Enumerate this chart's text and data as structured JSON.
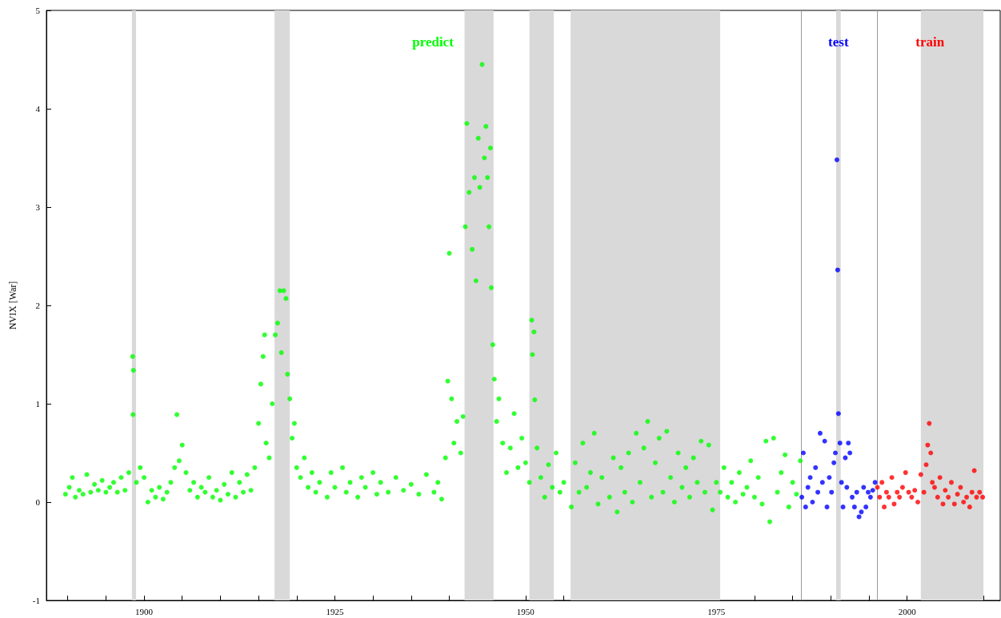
{
  "chart_data": {
    "type": "scatter",
    "ylabel": "NVIX [War]",
    "xlim": [
      1887.2,
      2012.2
    ],
    "ylim": [
      -1,
      5
    ],
    "xticks": [
      {
        "value": 1890,
        "label": null
      },
      {
        "value": 1895,
        "label": null
      },
      1900,
      {
        "value": 1905,
        "label": null
      },
      {
        "value": 1910,
        "label": null
      },
      {
        "value": 1915,
        "label": null
      },
      {
        "value": 1920,
        "label": null
      },
      1925,
      {
        "value": 1930,
        "label": null
      },
      {
        "value": 1935,
        "label": null
      },
      {
        "value": 1940,
        "label": null
      },
      {
        "value": 1945,
        "label": null
      },
      1950,
      {
        "value": 1955,
        "label": null
      },
      {
        "value": 1960,
        "label": null
      },
      {
        "value": 1965,
        "label": null
      },
      {
        "value": 1970,
        "label": null
      },
      1975,
      {
        "value": 1980,
        "label": null
      },
      {
        "value": 1985,
        "label": null
      },
      {
        "value": 1990,
        "label": null
      },
      {
        "value": 1995,
        "label": null
      },
      2000,
      {
        "value": 2005,
        "label": null
      },
      {
        "value": 2010,
        "label": null
      }
    ],
    "yticks": [
      -1,
      0,
      1,
      2,
      3,
      4,
      5
    ],
    "grid": false,
    "legend": false,
    "marker": "circle",
    "bands": [
      {
        "axis": "x",
        "from": 1898.4,
        "to": 1898.95,
        "color": "#d9d9d9"
      },
      {
        "axis": "x",
        "from": 1917.1,
        "to": 1919.1,
        "color": "#d9d9d9"
      },
      {
        "axis": "x",
        "from": 1942.0,
        "to": 1945.8,
        "color": "#d9d9d9"
      },
      {
        "axis": "x",
        "from": 1950.5,
        "to": 1953.7,
        "color": "#d9d9d9"
      },
      {
        "axis": "x",
        "from": 1955.9,
        "to": 1975.5,
        "color": "#d9d9d9"
      },
      {
        "axis": "x",
        "from": 1990.7,
        "to": 1991.3,
        "color": "#d9d9d9"
      },
      {
        "axis": "x",
        "from": 2001.8,
        "to": 2010.0,
        "color": "#d9d9d9"
      }
    ],
    "ref_lines": [
      {
        "axis": "x",
        "value": 1986.1,
        "color": "#999999",
        "line_style": "solid"
      },
      {
        "axis": "x",
        "value": 1996.1,
        "color": "#999999",
        "line_style": "solid"
      }
    ],
    "series": [
      {
        "name": "predict",
        "color": "#00ff00",
        "x": [
          1889.7,
          1890.2,
          1890.6,
          1891.0,
          1891.5,
          1892.0,
          1892.5,
          1893.0,
          1893.5,
          1894.0,
          1894.5,
          1895.0,
          1895.5,
          1896.0,
          1896.5,
          1897.0,
          1897.5,
          1898.0,
          1898.5,
          1898.6,
          1898.55,
          1899.0,
          1899.5,
          1900.0,
          1900.5,
          1901.0,
          1901.5,
          1902.0,
          1902.5,
          1903.0,
          1903.5,
          1904.0,
          1904.3,
          1904.6,
          1905.0,
          1905.5,
          1906.0,
          1906.5,
          1907.0,
          1907.5,
          1908.0,
          1908.5,
          1909.0,
          1909.5,
          1910.0,
          1910.5,
          1911.0,
          1911.5,
          1912.0,
          1912.5,
          1913.0,
          1913.5,
          1914.0,
          1914.5,
          1915.0,
          1915.3,
          1915.6,
          1915.8,
          1916.0,
          1916.4,
          1916.8,
          1917.2,
          1917.5,
          1917.8,
          1918.0,
          1918.3,
          1918.6,
          1918.8,
          1919.1,
          1919.4,
          1919.7,
          1920.0,
          1920.5,
          1921.0,
          1921.5,
          1922.0,
          1922.5,
          1923.0,
          1924.0,
          1924.5,
          1925.0,
          1926.0,
          1926.5,
          1927.0,
          1928.0,
          1928.5,
          1929.0,
          1930.0,
          1930.5,
          1931.0,
          1932.0,
          1933.0,
          1934.0,
          1935.0,
          1936.0,
          1937.0,
          1938.0,
          1938.5,
          1939.0,
          1939.5,
          1939.8,
          1940.0,
          1940.3,
          1940.6,
          1941.0,
          1941.5,
          1941.8,
          1942.1,
          1942.3,
          1942.6,
          1943.0,
          1943.3,
          1943.5,
          1943.8,
          1944.0,
          1944.3,
          1944.6,
          1944.8,
          1945.0,
          1945.2,
          1945.4,
          1945.5,
          1945.7,
          1945.9,
          1946.2,
          1946.5,
          1947.0,
          1947.5,
          1948.0,
          1948.5,
          1949.0,
          1949.5,
          1950.0,
          1950.5,
          1950.8,
          1950.9,
          1951.1,
          1951.2,
          1951.5,
          1952.0,
          1952.5,
          1953.0,
          1953.5,
          1954.0,
          1954.5,
          1955.0,
          1956.0,
          1956.5,
          1957.0,
          1957.5,
          1958.0,
          1958.5,
          1959.0,
          1959.5,
          1960.0,
          1961.0,
          1961.5,
          1962.0,
          1962.5,
          1963.0,
          1963.5,
          1964.0,
          1964.5,
          1965.0,
          1965.5,
          1966.0,
          1966.5,
          1967.0,
          1967.5,
          1968.0,
          1968.5,
          1969.0,
          1969.5,
          1970.0,
          1970.5,
          1971.0,
          1971.5,
          1972.0,
          1972.5,
          1973.0,
          1973.5,
          1974.0,
          1974.5,
          1975.0,
          1975.5,
          1976.0,
          1976.5,
          1977.0,
          1977.5,
          1978.0,
          1978.5,
          1979.0,
          1979.5,
          1980.0,
          1980.5,
          1981.0,
          1981.5,
          1982.0,
          1982.5,
          1983.0,
          1983.5,
          1984.0,
          1984.5,
          1985.0,
          1985.5,
          1986.0
        ],
        "values": [
          0.08,
          0.15,
          0.25,
          0.05,
          0.12,
          0.08,
          0.28,
          0.1,
          0.18,
          0.12,
          0.22,
          0.1,
          0.15,
          0.2,
          0.1,
          0.25,
          0.12,
          0.3,
          1.48,
          1.34,
          0.89,
          0.2,
          0.35,
          0.25,
          0.0,
          0.12,
          0.05,
          0.15,
          0.03,
          0.1,
          0.2,
          0.35,
          0.89,
          0.42,
          0.58,
          0.3,
          0.12,
          0.2,
          0.05,
          0.15,
          0.1,
          0.25,
          0.05,
          0.12,
          0.02,
          0.18,
          0.08,
          0.3,
          0.05,
          0.2,
          0.1,
          0.28,
          0.12,
          0.35,
          0.8,
          1.2,
          1.48,
          1.7,
          0.6,
          0.45,
          1.0,
          1.7,
          1.82,
          2.15,
          1.52,
          2.15,
          2.07,
          1.3,
          1.05,
          0.65,
          0.8,
          0.35,
          0.25,
          0.45,
          0.15,
          0.3,
          0.1,
          0.2,
          0.05,
          0.3,
          0.15,
          0.35,
          0.1,
          0.2,
          0.05,
          0.25,
          0.15,
          0.3,
          0.08,
          0.2,
          0.1,
          0.25,
          0.12,
          0.18,
          0.08,
          0.28,
          0.1,
          0.2,
          0.03,
          0.45,
          1.23,
          2.53,
          1.05,
          0.6,
          0.82,
          0.5,
          0.87,
          2.8,
          3.85,
          3.15,
          2.57,
          3.3,
          2.25,
          3.7,
          3.2,
          4.45,
          3.5,
          3.82,
          3.3,
          2.8,
          3.6,
          2.18,
          1.6,
          1.25,
          0.82,
          1.05,
          0.6,
          0.3,
          0.55,
          0.9,
          0.35,
          0.65,
          0.4,
          0.2,
          1.85,
          1.5,
          1.73,
          1.04,
          0.55,
          0.25,
          0.05,
          0.38,
          0.15,
          0.5,
          0.1,
          0.2,
          -0.05,
          0.4,
          0.1,
          0.6,
          0.15,
          0.3,
          0.7,
          -0.02,
          0.25,
          0.05,
          0.45,
          -0.1,
          0.35,
          0.1,
          0.5,
          0.0,
          0.7,
          0.2,
          0.55,
          0.82,
          0.05,
          0.4,
          0.65,
          0.1,
          0.72,
          0.25,
          0.0,
          0.5,
          0.15,
          0.35,
          0.05,
          0.45,
          0.2,
          0.62,
          0.1,
          0.58,
          -0.08,
          0.2,
          0.1,
          0.35,
          0.05,
          0.2,
          0.0,
          0.3,
          0.08,
          0.15,
          0.42,
          0.05,
          0.25,
          -0.02,
          0.62,
          -0.2,
          0.65,
          0.1,
          0.3,
          0.48,
          -0.05,
          0.2,
          0.08,
          0.42
        ]
      },
      {
        "name": "test",
        "color": "#0000ff",
        "x": [
          1986.2,
          1986.4,
          1986.7,
          1987.0,
          1987.3,
          1987.6,
          1988.0,
          1988.3,
          1988.6,
          1988.9,
          1989.2,
          1989.5,
          1989.8,
          1990.1,
          1990.4,
          1990.6,
          1990.8,
          1990.9,
          1991.0,
          1991.2,
          1991.4,
          1991.6,
          1991.9,
          1992.1,
          1992.3,
          1992.5,
          1992.8,
          1993.1,
          1993.4,
          1993.7,
          1994.0,
          1994.3,
          1994.6,
          1994.9,
          1995.2,
          1995.5,
          1995.8
        ],
        "values": [
          0.05,
          0.5,
          -0.05,
          0.15,
          0.25,
          0.0,
          0.35,
          0.1,
          0.7,
          0.2,
          0.62,
          -0.05,
          0.25,
          0.1,
          0.4,
          0.5,
          3.48,
          2.36,
          0.9,
          0.6,
          0.2,
          -0.05,
          0.45,
          0.15,
          0.6,
          0.5,
          0.05,
          -0.05,
          0.1,
          -0.15,
          -0.1,
          0.15,
          -0.05,
          0.1,
          0.05,
          0.12,
          0.2
        ]
      },
      {
        "name": "train",
        "color": "#ff0000",
        "x": [
          1996.1,
          1996.4,
          1996.7,
          1997.0,
          1997.3,
          1997.6,
          1998.0,
          1998.3,
          1998.7,
          1999.0,
          1999.4,
          1999.8,
          2000.2,
          2000.6,
          2001.0,
          2001.4,
          2001.8,
          2002.2,
          2002.5,
          2002.7,
          2002.9,
          2003.1,
          2003.3,
          2003.6,
          2004.0,
          2004.3,
          2004.7,
          2005.0,
          2005.4,
          2005.8,
          2006.2,
          2006.6,
          2007.0,
          2007.4,
          2007.8,
          2008.2,
          2008.5,
          2008.8,
          2009.1,
          2009.5,
          2009.9
        ],
        "values": [
          0.15,
          0.05,
          0.2,
          -0.05,
          0.1,
          0.05,
          0.25,
          -0.02,
          0.1,
          0.05,
          0.15,
          0.3,
          0.1,
          0.05,
          0.12,
          0.0,
          0.28,
          0.1,
          0.38,
          0.58,
          0.8,
          0.5,
          0.2,
          0.15,
          0.05,
          0.25,
          -0.02,
          0.12,
          0.05,
          0.2,
          -0.02,
          0.08,
          0.15,
          0.0,
          0.05,
          -0.05,
          0.1,
          0.32,
          0.05,
          0.1,
          0.05
        ]
      }
    ]
  }
}
